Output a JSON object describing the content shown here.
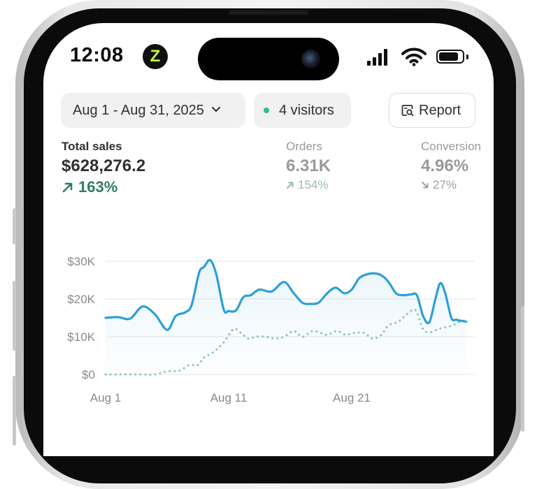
{
  "status_bar": {
    "time": "12:08",
    "app_badge": "Z",
    "icons": [
      "cellular-signal-icon",
      "wifi-icon",
      "battery-icon"
    ],
    "battery_level": 0.85
  },
  "toolbar": {
    "date_range_label": "Aug 1 - Aug 31, 2025",
    "visitors_label": "4 visitors",
    "report_label": "Report",
    "live_dot_color": "#29c17e"
  },
  "metrics": [
    {
      "label": "Total sales",
      "value": "$628,276.2",
      "change": "163%",
      "direction": "up"
    },
    {
      "label": "Orders",
      "value": "6.31K",
      "change": "154%",
      "direction": "up"
    },
    {
      "label": "Conversion",
      "value": "4.96%",
      "change": "27%",
      "direction": "down"
    }
  ],
  "colors": {
    "positive": "#2f7d60",
    "current_series": "#2d9fd8",
    "comparison_series": "#8fc1c3"
  },
  "chart_data": {
    "type": "line",
    "y_ticks": [
      "$0",
      "$10K",
      "$20K",
      "$30K"
    ],
    "x_ticks": [
      "Aug 1",
      "Aug 11",
      "Aug 21"
    ],
    "x_tick_days": [
      1,
      11,
      21
    ],
    "ylim": [
      0,
      30000
    ],
    "xlim": [
      1,
      31
    ],
    "grid": true,
    "series": [
      {
        "style": "solid",
        "x": [
          1,
          2,
          3,
          4,
          5,
          6,
          6.7,
          7.5,
          8,
          8.6,
          9,
          9.5,
          10,
          10.6,
          11,
          11.6,
          12.2,
          12.8,
          13.5,
          14.5,
          15.5,
          16.3,
          17,
          17.6,
          18.3,
          19,
          19.7,
          20.4,
          21,
          21.6,
          22.2,
          22.8,
          23.4,
          24,
          24.6,
          25.2,
          25.8,
          26.3,
          26.8,
          27.3,
          27.8,
          28.2,
          28.6,
          29.1,
          29.5,
          29.9,
          30.3
        ],
        "y": [
          15000,
          15200,
          14800,
          18000,
          16000,
          11800,
          15500,
          16500,
          18500,
          27000,
          28500,
          30300,
          26500,
          17200,
          16800,
          17000,
          20500,
          21000,
          22500,
          22000,
          24500,
          21500,
          19000,
          18700,
          19000,
          21500,
          23000,
          21500,
          22500,
          25500,
          26500,
          26800,
          26300,
          24500,
          21500,
          21000,
          21200,
          21000,
          15500,
          13800,
          20000,
          24200,
          21500,
          15000,
          14500,
          14200,
          14000
        ],
        "area_fill": true
      },
      {
        "style": "dotted",
        "x": [
          1,
          2,
          3,
          4,
          5,
          6,
          7,
          7.8,
          8.5,
          9,
          9.8,
          10.6,
          11.4,
          12,
          12.6,
          13.2,
          14,
          14.8,
          15.5,
          16.3,
          17,
          17.8,
          18.5,
          19,
          19.8,
          20.5,
          21.2,
          22,
          22.7,
          23.4,
          24,
          24.8,
          25.5,
          26.2,
          26.8,
          27.4,
          28,
          28.6,
          29.2,
          29.8,
          30.4
        ],
        "y": [
          0,
          0,
          0,
          0,
          0,
          800,
          1000,
          2500,
          2500,
          4500,
          6000,
          8500,
          12000,
          11000,
          9500,
          10000,
          10000,
          9500,
          10000,
          11500,
          10000,
          11500,
          11000,
          10500,
          11500,
          10500,
          11000,
          11000,
          9500,
          10500,
          13000,
          14000,
          16000,
          17000,
          12000,
          11200,
          12000,
          12500,
          13000,
          14000,
          14500
        ]
      }
    ]
  }
}
